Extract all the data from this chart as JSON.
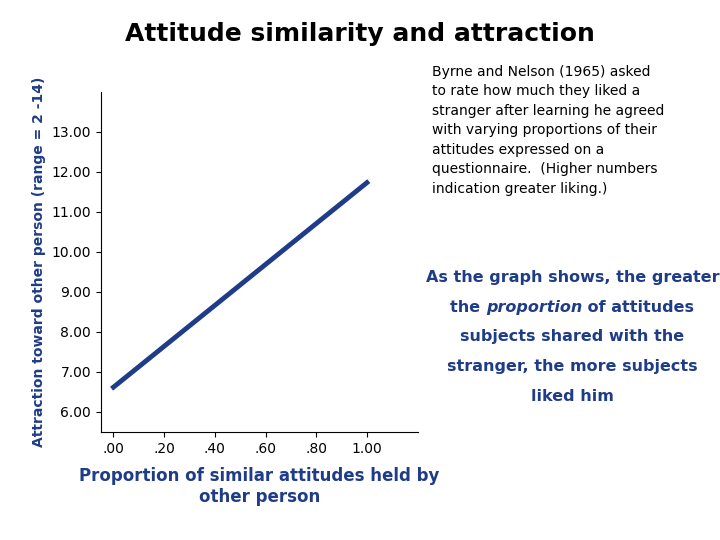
{
  "title": "Attitude similarity and attraction",
  "title_fontsize": 18,
  "title_fontweight": "bold",
  "title_color": "#000000",
  "xlabel": "Proportion of similar attitudes held by\nother person",
  "xlabel_fontsize": 12,
  "xlabel_color": "#1F3C88",
  "xlabel_fontweight": "bold",
  "ylabel": "Attraction toward other person (range = 2 -14)",
  "ylabel_fontsize": 10,
  "ylabel_color": "#1F3C88",
  "ylabel_fontweight": "bold",
  "x_data": [
    0.0,
    1.0
  ],
  "y_data": [
    6.62,
    11.73
  ],
  "line_color": "#1F3C88",
  "line_width": 3.5,
  "xlim": [
    -0.05,
    1.2
  ],
  "ylim": [
    5.5,
    14.0
  ],
  "yticks": [
    6.0,
    7.0,
    8.0,
    9.0,
    10.0,
    11.0,
    12.0,
    13.0
  ],
  "ytick_labels": [
    "6.00",
    "7.00",
    "8.00",
    "9.00",
    "10.00",
    "11.00",
    "12.00",
    "13.00"
  ],
  "xticks": [
    0.0,
    0.2,
    0.4,
    0.6,
    0.8,
    1.0
  ],
  "xtick_labels": [
    ".00",
    ".20",
    ".40",
    ".60",
    ".80",
    "1.00"
  ],
  "annotation1_text": "Byrne and Nelson (1965) asked\nto rate how much they liked a\nstranger after learning he agreed\nwith varying proportions of their\nattitudes expressed on a\nquestionnaire.  (Higher numbers\nindication greater liking.)",
  "annotation1_color": "#000000",
  "annotation1_fontsize": 10,
  "annotation2_line1": "As the graph shows, the greater",
  "annotation2_line2_pre": "the ",
  "annotation2_line2_italic": "proportion",
  "annotation2_line2_post": " of attitudes",
  "annotation2_line3": "subjects shared with the",
  "annotation2_line4": "stranger, the more subjects",
  "annotation2_line5": "liked him",
  "annotation2_color": "#1F3C88",
  "annotation2_fontsize": 11.5,
  "annotation2_fontweight": "bold",
  "bg_color": "#FFFFFF"
}
